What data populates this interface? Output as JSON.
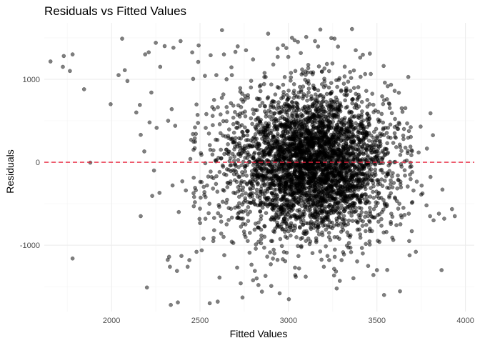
{
  "chart_data": {
    "type": "scatter",
    "title": "Residuals vs Fitted Values",
    "xlabel": "Fitted Values",
    "ylabel": "Residuals",
    "xlim": [
      1620,
      4050
    ],
    "ylim": [
      -1800,
      1680
    ],
    "x_ticks": [
      2000,
      2500,
      3000,
      3500,
      4000
    ],
    "x_tick_labels": [
      "2000",
      "2500",
      "3000",
      "3500",
      "4000"
    ],
    "y_ticks": [
      -1000,
      0,
      1000
    ],
    "y_tick_labels": [
      "-1000",
      "0",
      "1000"
    ],
    "grid": true,
    "reference_line": {
      "y": 0,
      "color": "#e8213a",
      "style": "dashed"
    },
    "point_color": "#000000",
    "points": [
      [
        1655,
        1215
      ],
      [
        1730,
        1280
      ],
      [
        1725,
        1150
      ],
      [
        1765,
        1100
      ],
      [
        1780,
        1300
      ],
      [
        1780,
        -1160
      ],
      [
        1845,
        880
      ],
      [
        1880,
        -5
      ],
      [
        1995,
        700
      ],
      [
        2040,
        1050
      ],
      [
        2060,
        1490
      ],
      [
        2075,
        1110
      ],
      [
        2090,
        980
      ],
      [
        2140,
        600
      ],
      [
        2160,
        690
      ],
      [
        2165,
        330
      ],
      [
        2165,
        -650
      ],
      [
        2185,
        130
      ],
      [
        2190,
        1300
      ],
      [
        2200,
        -1510
      ],
      [
        2210,
        1325
      ],
      [
        2215,
        480
      ],
      [
        2225,
        840
      ],
      [
        2230,
        -405
      ],
      [
        2240,
        -100
      ],
      [
        2250,
        1440
      ],
      [
        2255,
        415
      ],
      [
        2275,
        1150
      ],
      [
        2300,
        1400
      ],
      [
        2320,
        500
      ],
      [
        2325,
        -1140
      ],
      [
        2330,
        -1260
      ],
      [
        2335,
        -1720
      ],
      [
        2340,
        640
      ],
      [
        2345,
        -280
      ],
      [
        2350,
        1380
      ],
      [
        2360,
        440
      ],
      [
        2370,
        -1310
      ],
      [
        2375,
        -1690
      ],
      [
        2380,
        -600
      ],
      [
        2390,
        1460
      ],
      [
        2395,
        -1130
      ],
      [
        2400,
        -230
      ],
      [
        2420,
        -340
      ],
      [
        2430,
        -1260
      ],
      [
        2440,
        -1180
      ],
      [
        2450,
        270
      ],
      [
        2460,
        340
      ],
      [
        2465,
        -530
      ],
      [
        2470,
        170
      ],
      [
        2480,
        -1080
      ],
      [
        2490,
        1210
      ],
      [
        2500,
        -560
      ],
      [
        2505,
        110
      ],
      [
        2520,
        -920
      ],
      [
        2525,
        -360
      ],
      [
        2540,
        -280
      ],
      [
        2555,
        -1700
      ],
      [
        2560,
        1290
      ],
      [
        2575,
        -950
      ],
      [
        2580,
        -820
      ],
      [
        2600,
        -1680
      ],
      [
        2610,
        -1390
      ],
      [
        2620,
        -860
      ],
      [
        2635,
        1300
      ],
      [
        2650,
        1000
      ],
      [
        2660,
        -250
      ],
      [
        2680,
        1050
      ],
      [
        2700,
        1330
      ],
      [
        2710,
        -1270
      ],
      [
        2730,
        -1460
      ],
      [
        2740,
        -1630
      ],
      [
        2760,
        1350
      ],
      [
        2780,
        -1090
      ],
      [
        2800,
        1240
      ],
      [
        2810,
        -1310
      ],
      [
        2820,
        -1400
      ],
      [
        2830,
        -1480
      ],
      [
        2850,
        -1560
      ],
      [
        2870,
        -1370
      ],
      [
        2900,
        -1230
      ],
      [
        2920,
        -1100
      ],
      [
        2950,
        -1580
      ],
      [
        2970,
        1410
      ],
      [
        2990,
        -1090
      ],
      [
        3020,
        1500
      ],
      [
        3035,
        1470
      ],
      [
        3060,
        -1280
      ],
      [
        3100,
        1510
      ],
      [
        3150,
        1460
      ],
      [
        3180,
        1600
      ],
      [
        3200,
        -1260
      ],
      [
        3230,
        -1180
      ],
      [
        3260,
        1490
      ],
      [
        3290,
        -1430
      ],
      [
        3300,
        -1180
      ],
      [
        3350,
        -1030
      ],
      [
        3380,
        1350
      ],
      [
        3420,
        -1100
      ],
      [
        3450,
        -1250
      ],
      [
        3460,
        1310
      ],
      [
        3480,
        -1360
      ],
      [
        3500,
        -1300
      ],
      [
        3540,
        -1600
      ],
      [
        3600,
        350
      ],
      [
        3620,
        -560
      ],
      [
        3650,
        280
      ],
      [
        3680,
        -620
      ],
      [
        3700,
        -480
      ],
      [
        3720,
        -1080
      ],
      [
        3750,
        -390
      ],
      [
        3780,
        -520
      ],
      [
        3800,
        -650
      ],
      [
        3820,
        -700
      ],
      [
        3850,
        -620
      ],
      [
        3865,
        -1300
      ],
      [
        3870,
        -330
      ],
      [
        3880,
        -680
      ],
      [
        3940,
        -650
      ]
    ]
  }
}
